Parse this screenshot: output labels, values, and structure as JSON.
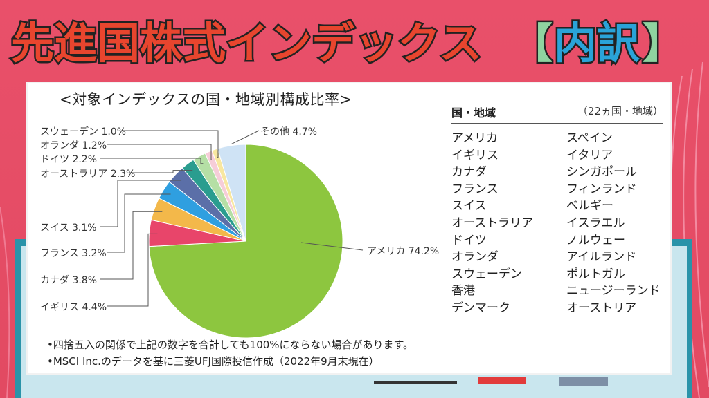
{
  "header": {
    "title_main": "先進国株式インデックス",
    "title_bracket_open": "【",
    "title_bracket_text": "内訳",
    "title_bracket_close": "】"
  },
  "chart_data": {
    "type": "pie",
    "title": "<対象インデックスの国・地域別構成比率>",
    "slices": [
      {
        "label": "アメリカ",
        "value": 74.2,
        "display": "アメリカ 74.2%",
        "color": "#8dc63f"
      },
      {
        "label": "イギリス",
        "value": 4.4,
        "display": "イギリス 4.4%",
        "color": "#e8456a"
      },
      {
        "label": "カナダ",
        "value": 3.8,
        "display": "カナダ 3.8%",
        "color": "#f3b84a"
      },
      {
        "label": "フランス",
        "value": 3.2,
        "display": "フランス 3.2%",
        "color": "#2f9fe0"
      },
      {
        "label": "スイス",
        "value": 3.1,
        "display": "スイス 3.1%",
        "color": "#5b6fa8"
      },
      {
        "label": "オーストラリア",
        "value": 2.3,
        "display": "オーストラリア 2.3%",
        "color": "#2a9d8f"
      },
      {
        "label": "ドイツ",
        "value": 2.2,
        "display": "ドイツ 2.2%",
        "color": "#b5dfa5"
      },
      {
        "label": "オランダ",
        "value": 1.2,
        "display": "オランダ 1.2%",
        "color": "#f6cdd8"
      },
      {
        "label": "スウェーデン",
        "value": 1.0,
        "display": "スウェーデン 1.0%",
        "color": "#f8e7a0"
      },
      {
        "label": "その他",
        "value": 4.7,
        "display": "その他 4.7%",
        "color": "#cfe3f5"
      }
    ]
  },
  "notes": [
    "•四捨五入の関係で上記の数字を合計しても100%にならない場合があります。",
    "•MSCI Inc.のデータを基に三菱UFJ国際投信作成（2022年9月末現在）"
  ],
  "country_table": {
    "header_left": "国・地域",
    "header_right": "（22ヵ国・地域）",
    "col1": [
      "アメリカ",
      "イギリス",
      "カナダ",
      "フランス",
      "スイス",
      "オーストラリア",
      "ドイツ",
      "オランダ",
      "スウェーデン",
      "香港",
      "デンマーク"
    ],
    "col2": [
      "スペイン",
      "イタリア",
      "シンガポール",
      "フィンランド",
      "ベルギー",
      "イスラエル",
      "ノルウェー",
      "アイルランド",
      "ポルトガル",
      "ニュージーランド",
      "オーストリア"
    ]
  },
  "colors": {
    "background": "#e9506a",
    "title_fill": "#e8452e",
    "title_stroke": "#222222",
    "bracket_fill": "#8fd3a0",
    "frame_teal": "#2a93a9"
  }
}
